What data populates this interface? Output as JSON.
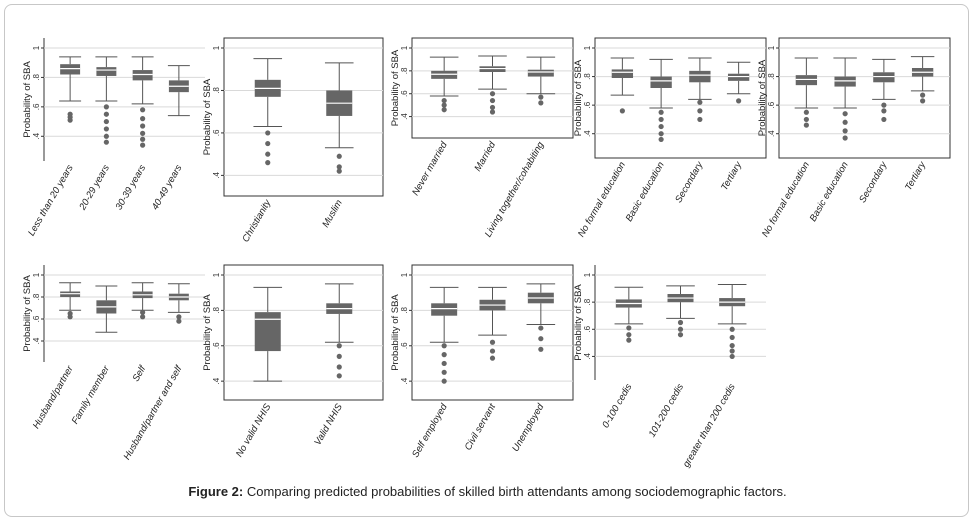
{
  "caption": {
    "label": "Figure 2:",
    "text": "Comparing predicted probabilities of skilled birth attendants among sociodemographic factors."
  },
  "colors": {
    "box_fill": "#666666",
    "median_line": "#ffffff",
    "whisker": "#555555",
    "outlier": "#666666",
    "grid": "#d9d9d9",
    "panel_border": "#333333"
  },
  "chart_data": [
    {
      "type": "box",
      "ylabel": "Probability of SBA",
      "yticks": [
        ".4",
        ".6",
        ".8",
        "1"
      ],
      "ylim": [
        0.3,
        1.0
      ],
      "categories": [
        "Less than 20 years",
        "20-29 years",
        "30-39 years",
        "40-49 years"
      ],
      "boxes": [
        {
          "min": 0.64,
          "q1": 0.82,
          "median": 0.86,
          "q3": 0.89,
          "max": 0.94,
          "outliers": [
            0.55,
            0.53,
            0.51
          ]
        },
        {
          "min": 0.64,
          "q1": 0.81,
          "median": 0.85,
          "q3": 0.87,
          "max": 0.94,
          "outliers": [
            0.6,
            0.55,
            0.5,
            0.45,
            0.4,
            0.36
          ]
        },
        {
          "min": 0.62,
          "q1": 0.78,
          "median": 0.82,
          "q3": 0.85,
          "max": 0.94,
          "outliers": [
            0.58,
            0.52,
            0.47,
            0.42,
            0.38,
            0.34
          ]
        },
        {
          "min": 0.54,
          "q1": 0.7,
          "median": 0.74,
          "q3": 0.78,
          "max": 0.88,
          "outliers": []
        }
      ]
    },
    {
      "type": "box",
      "ylabel": "Probability of SBA",
      "yticks": [
        ".4",
        ".6",
        ".8",
        "1"
      ],
      "ylim": [
        0.35,
        1.0
      ],
      "categories": [
        "Christianity",
        "Muslim"
      ],
      "boxes": [
        {
          "min": 0.63,
          "q1": 0.77,
          "median": 0.81,
          "q3": 0.85,
          "max": 0.95,
          "outliers": [
            0.6,
            0.55,
            0.5,
            0.46
          ]
        },
        {
          "min": 0.53,
          "q1": 0.68,
          "median": 0.74,
          "q3": 0.8,
          "max": 0.93,
          "outliers": [
            0.49,
            0.44,
            0.42
          ]
        }
      ]
    },
    {
      "type": "box",
      "ylabel": "Probability of SBA",
      "yticks": [
        ".4",
        ".6",
        ".8",
        "1"
      ],
      "ylim": [
        0.3,
        1.0
      ],
      "categories": [
        "Never married",
        "Married",
        "Living together/cohabiting"
      ],
      "boxes": [
        {
          "min": 0.58,
          "q1": 0.73,
          "median": 0.77,
          "q3": 0.8,
          "max": 0.92,
          "outliers": [
            0.54,
            0.5,
            0.46
          ]
        },
        {
          "min": 0.64,
          "q1": 0.79,
          "median": 0.82,
          "q3": 0.84,
          "max": 0.93,
          "outliers": [
            0.6,
            0.54,
            0.48,
            0.44
          ]
        },
        {
          "min": 0.6,
          "q1": 0.75,
          "median": 0.79,
          "q3": 0.81,
          "max": 0.92,
          "outliers": [
            0.57,
            0.52
          ]
        }
      ]
    },
    {
      "type": "box",
      "ylabel": "Probability of SBA",
      "yticks": [
        ".4",
        ".6",
        ".8",
        "1"
      ],
      "ylim": [
        0.3,
        1.0
      ],
      "categories": [
        "No formal education",
        "Basic  education",
        "Secondary",
        "Tertiary"
      ],
      "boxes": [
        {
          "min": 0.67,
          "q1": 0.79,
          "median": 0.83,
          "q3": 0.85,
          "max": 0.93,
          "outliers": [
            0.56
          ]
        },
        {
          "min": 0.58,
          "q1": 0.72,
          "median": 0.77,
          "q3": 0.8,
          "max": 0.92,
          "outliers": [
            0.55,
            0.5,
            0.45,
            0.4,
            0.36
          ]
        },
        {
          "min": 0.64,
          "q1": 0.76,
          "median": 0.81,
          "q3": 0.84,
          "max": 0.93,
          "outliers": [
            0.62,
            0.56,
            0.5
          ]
        },
        {
          "min": 0.68,
          "q1": 0.77,
          "median": 0.8,
          "q3": 0.82,
          "max": 0.9,
          "outliers": [
            0.63
          ]
        }
      ]
    },
    {
      "type": "box",
      "ylabel": "Probability of SBA",
      "yticks": [
        ".4",
        ".6",
        ".8",
        "1"
      ],
      "ylim": [
        0.3,
        1.0
      ],
      "categories": [
        "No formal education",
        "Basic education",
        "Secondary",
        "Tertiary"
      ],
      "boxes": [
        {
          "min": 0.58,
          "q1": 0.74,
          "median": 0.78,
          "q3": 0.81,
          "max": 0.93,
          "outliers": [
            0.55,
            0.5,
            0.46
          ]
        },
        {
          "min": 0.58,
          "q1": 0.73,
          "median": 0.77,
          "q3": 0.8,
          "max": 0.93,
          "outliers": [
            0.54,
            0.48,
            0.42,
            0.37
          ]
        },
        {
          "min": 0.64,
          "q1": 0.76,
          "median": 0.8,
          "q3": 0.83,
          "max": 0.92,
          "outliers": [
            0.6,
            0.56,
            0.5
          ]
        },
        {
          "min": 0.7,
          "q1": 0.8,
          "median": 0.83,
          "q3": 0.86,
          "max": 0.94,
          "outliers": [
            0.67,
            0.63
          ]
        }
      ]
    },
    {
      "type": "box",
      "ylabel": "Probability of SBA",
      "yticks": [
        ".4",
        ".6",
        ".8",
        "1"
      ],
      "ylim": [
        0.3,
        1.0
      ],
      "categories": [
        "Husband/partner",
        "Family member",
        "Self",
        "Husband/partner and self"
      ],
      "boxes": [
        {
          "min": 0.68,
          "q1": 0.8,
          "median": 0.83,
          "q3": 0.85,
          "max": 0.93,
          "outliers": [
            0.65,
            0.62
          ]
        },
        {
          "min": 0.48,
          "q1": 0.65,
          "median": 0.71,
          "q3": 0.77,
          "max": 0.9,
          "outliers": []
        },
        {
          "min": 0.68,
          "q1": 0.79,
          "median": 0.82,
          "q3": 0.85,
          "max": 0.93,
          "outliers": [
            0.66,
            0.62
          ]
        },
        {
          "min": 0.66,
          "q1": 0.77,
          "median": 0.8,
          "q3": 0.83,
          "max": 0.92,
          "outliers": [
            0.62,
            0.58
          ]
        }
      ]
    },
    {
      "type": "box",
      "ylabel": "Probability of SBA",
      "yticks": [
        ".4",
        ".6",
        ".8",
        "1"
      ],
      "ylim": [
        0.35,
        1.0
      ],
      "categories": [
        "No valid NHIS",
        "Valid NHIS"
      ],
      "boxes": [
        {
          "min": 0.4,
          "q1": 0.57,
          "median": 0.75,
          "q3": 0.79,
          "max": 0.93,
          "outliers": []
        },
        {
          "min": 0.62,
          "q1": 0.78,
          "median": 0.81,
          "q3": 0.84,
          "max": 0.95,
          "outliers": [
            0.6,
            0.54,
            0.48,
            0.43
          ]
        }
      ]
    },
    {
      "type": "box",
      "ylabel": "Probability of SBA",
      "yticks": [
        ".4",
        ".6",
        ".8",
        "1"
      ],
      "ylim": [
        0.35,
        1.0
      ],
      "categories": [
        "Self employed",
        "Civil servant",
        "Unemployed"
      ],
      "boxes": [
        {
          "min": 0.62,
          "q1": 0.77,
          "median": 0.81,
          "q3": 0.84,
          "max": 0.93,
          "outliers": [
            0.6,
            0.55,
            0.5,
            0.45,
            0.4
          ]
        },
        {
          "min": 0.66,
          "q1": 0.8,
          "median": 0.83,
          "q3": 0.86,
          "max": 0.93,
          "outliers": [
            0.62,
            0.57,
            0.53
          ]
        },
        {
          "min": 0.72,
          "q1": 0.84,
          "median": 0.87,
          "q3": 0.9,
          "max": 0.95,
          "outliers": [
            0.7,
            0.64,
            0.58
          ]
        }
      ]
    },
    {
      "type": "box",
      "ylabel": "Probability of SBA",
      "yticks": [
        ".4",
        ".6",
        ".8",
        "1"
      ],
      "ylim": [
        0.3,
        1.0
      ],
      "categories": [
        "0-100 cedis",
        "101-200 cedis",
        "greater than 200 cedis"
      ],
      "boxes": [
        {
          "min": 0.64,
          "q1": 0.76,
          "median": 0.79,
          "q3": 0.82,
          "max": 0.91,
          "outliers": [
            0.61,
            0.56,
            0.52
          ]
        },
        {
          "min": 0.68,
          "q1": 0.8,
          "median": 0.83,
          "q3": 0.86,
          "max": 0.92,
          "outliers": [
            0.65,
            0.6,
            0.56
          ]
        },
        {
          "min": 0.64,
          "q1": 0.77,
          "median": 0.8,
          "q3": 0.83,
          "max": 0.93,
          "outliers": [
            0.6,
            0.54,
            0.48,
            0.44,
            0.4
          ]
        }
      ]
    }
  ]
}
